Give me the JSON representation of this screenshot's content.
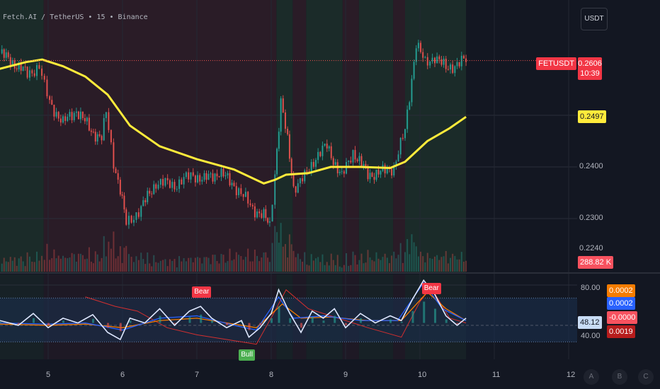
{
  "header": {
    "title": "Fetch.AI / TetherUS • 15 • Binance",
    "currency_button": "USDT"
  },
  "price_axis": {
    "ticks": [
      "0.2400",
      "0.2300",
      "0.2240"
    ],
    "symbol_tag": "FETUSDT",
    "last_price": "0.2606",
    "countdown": "10:39",
    "ma_value": "0.2497",
    "volume_value": "288.82 K"
  },
  "oscillator_axis": {
    "ticks": [
      "80.00",
      "40.00"
    ],
    "current": "48.12",
    "values": [
      "0.0002",
      "0.0002",
      "-0.0000",
      "0.0019"
    ]
  },
  "signals": [
    {
      "label": "Bear",
      "day": 7.05,
      "value": 69
    },
    {
      "label": "Bull",
      "day": 7.68,
      "value": 28
    },
    {
      "label": "Bear",
      "day": 10.14,
      "value": 72
    }
  ],
  "time_axis": {
    "labels": [
      "5",
      "6",
      "7",
      "8",
      "9",
      "10",
      "11",
      "12"
    ]
  },
  "scale_buttons": [
    "A",
    "B",
    "C"
  ],
  "colors": {
    "background": "#131722",
    "up": "#26a69a",
    "down": "#ef5350",
    "ma": "#ffeb3b",
    "bull_band": "#1b2b29",
    "bear_band": "#2a1c27",
    "osc_main": "#dfe8ff",
    "osc_blue": "#2962ff",
    "osc_orange": "#f57c00",
    "osc_red": "#d32f2f"
  },
  "chart_data": {
    "type": "candlestick",
    "symbol": "FETUSDT",
    "interval": "15",
    "x_unit": "day",
    "xlim": [
      4.35,
      12.3
    ],
    "ylim": [
      0.221,
      0.268
    ],
    "regime_bands": [
      {
        "from": 4.35,
        "to": 4.94,
        "state": "bull"
      },
      {
        "from": 4.94,
        "to": 8.07,
        "state": "bear"
      },
      {
        "from": 8.07,
        "to": 8.29,
        "state": "bull"
      },
      {
        "from": 8.29,
        "to": 8.47,
        "state": "bear"
      },
      {
        "from": 8.47,
        "to": 8.96,
        "state": "bull"
      },
      {
        "from": 8.96,
        "to": 9.18,
        "state": "bear"
      },
      {
        "from": 9.18,
        "to": 9.64,
        "state": "bull"
      },
      {
        "from": 9.64,
        "to": 9.8,
        "state": "bear"
      },
      {
        "from": 9.8,
        "to": 10.62,
        "state": "bull"
      }
    ],
    "close": [
      [
        4.35,
        0.262
      ],
      [
        4.55,
        0.26
      ],
      [
        4.72,
        0.258
      ],
      [
        4.88,
        0.2595
      ],
      [
        4.95,
        0.2555
      ],
      [
        5.02,
        0.2525
      ],
      [
        5.2,
        0.2485
      ],
      [
        5.38,
        0.251
      ],
      [
        5.58,
        0.247
      ],
      [
        5.72,
        0.2455
      ],
      [
        5.78,
        0.2505
      ],
      [
        5.88,
        0.241
      ],
      [
        5.97,
        0.2355
      ],
      [
        6.05,
        0.229
      ],
      [
        6.12,
        0.23
      ],
      [
        6.25,
        0.232
      ],
      [
        6.45,
        0.237
      ],
      [
        6.7,
        0.2365
      ],
      [
        6.95,
        0.2385
      ],
      [
        7.1,
        0.2375
      ],
      [
        7.3,
        0.239
      ],
      [
        7.5,
        0.2365
      ],
      [
        7.75,
        0.232
      ],
      [
        7.9,
        0.2305
      ],
      [
        7.98,
        0.2285
      ],
      [
        8.05,
        0.239
      ],
      [
        8.13,
        0.2525
      ],
      [
        8.22,
        0.245
      ],
      [
        8.3,
        0.236
      ],
      [
        8.45,
        0.238
      ],
      [
        8.6,
        0.242
      ],
      [
        8.75,
        0.244
      ],
      [
        8.95,
        0.238
      ],
      [
        9.1,
        0.243
      ],
      [
        9.3,
        0.2385
      ],
      [
        9.5,
        0.239
      ],
      [
        9.65,
        0.24
      ],
      [
        9.8,
        0.247
      ],
      [
        9.95,
        0.264
      ],
      [
        10.07,
        0.26
      ],
      [
        10.2,
        0.2615
      ],
      [
        10.35,
        0.259
      ],
      [
        10.5,
        0.26
      ],
      [
        10.62,
        0.2606
      ]
    ],
    "moving_average": [
      [
        4.35,
        0.259
      ],
      [
        4.7,
        0.2603
      ],
      [
        4.92,
        0.2608
      ],
      [
        5.2,
        0.2595
      ],
      [
        5.5,
        0.2575
      ],
      [
        5.8,
        0.254
      ],
      [
        6.1,
        0.248
      ],
      [
        6.5,
        0.244
      ],
      [
        7.0,
        0.2415
      ],
      [
        7.5,
        0.2395
      ],
      [
        7.9,
        0.2368
      ],
      [
        8.05,
        0.2375
      ],
      [
        8.2,
        0.2385
      ],
      [
        8.5,
        0.2388
      ],
      [
        8.8,
        0.24
      ],
      [
        9.2,
        0.24
      ],
      [
        9.6,
        0.2398
      ],
      [
        9.8,
        0.241
      ],
      [
        10.1,
        0.245
      ],
      [
        10.4,
        0.2475
      ],
      [
        10.62,
        0.2497
      ]
    ],
    "oscillator": {
      "ylim": [
        20,
        88
      ],
      "upper_band": 69,
      "lower_band": 32,
      "mid_line": 46,
      "main": [
        [
          4.35,
          50
        ],
        [
          4.6,
          46
        ],
        [
          4.8,
          56
        ],
        [
          5.0,
          44
        ],
        [
          5.2,
          52
        ],
        [
          5.4,
          48
        ],
        [
          5.6,
          55
        ],
        [
          5.8,
          40
        ],
        [
          5.97,
          34
        ],
        [
          6.1,
          52
        ],
        [
          6.3,
          48
        ],
        [
          6.5,
          60
        ],
        [
          6.7,
          46
        ],
        [
          6.9,
          58
        ],
        [
          7.05,
          62
        ],
        [
          7.2,
          52
        ],
        [
          7.4,
          44
        ],
        [
          7.6,
          50
        ],
        [
          7.7,
          36
        ],
        [
          7.85,
          44
        ],
        [
          8.0,
          56
        ],
        [
          8.1,
          76
        ],
        [
          8.25,
          56
        ],
        [
          8.4,
          40
        ],
        [
          8.55,
          58
        ],
        [
          8.7,
          52
        ],
        [
          8.85,
          60
        ],
        [
          9.0,
          44
        ],
        [
          9.2,
          56
        ],
        [
          9.4,
          48
        ],
        [
          9.6,
          54
        ],
        [
          9.75,
          50
        ],
        [
          9.9,
          68
        ],
        [
          10.05,
          84
        ],
        [
          10.2,
          72
        ],
        [
          10.35,
          54
        ],
        [
          10.5,
          46
        ],
        [
          10.62,
          52
        ]
      ],
      "blue": [
        [
          4.35,
          48
        ],
        [
          5.0,
          47
        ],
        [
          5.5,
          48
        ],
        [
          6.0,
          42
        ],
        [
          6.5,
          52
        ],
        [
          7.0,
          54
        ],
        [
          7.5,
          46
        ],
        [
          7.8,
          42
        ],
        [
          8.1,
          70
        ],
        [
          8.3,
          52
        ],
        [
          8.7,
          54
        ],
        [
          9.2,
          50
        ],
        [
          9.7,
          50
        ],
        [
          10.05,
          82
        ],
        [
          10.3,
          60
        ],
        [
          10.62,
          50
        ]
      ],
      "orange": [
        [
          4.35,
          47
        ],
        [
          5.0,
          46
        ],
        [
          5.5,
          47
        ],
        [
          6.0,
          44
        ],
        [
          6.5,
          50
        ],
        [
          7.0,
          52
        ],
        [
          7.5,
          47
        ],
        [
          7.8,
          44
        ],
        [
          8.15,
          64
        ],
        [
          8.4,
          52
        ],
        [
          8.8,
          53
        ],
        [
          9.3,
          50
        ],
        [
          9.75,
          50
        ],
        [
          10.1,
          74
        ],
        [
          10.35,
          60
        ],
        [
          10.62,
          50
        ]
      ],
      "red": [
        [
          5.5,
          70
        ],
        [
          5.9,
          62
        ],
        [
          6.2,
          58
        ],
        [
          6.6,
          44
        ],
        [
          7.0,
          38
        ],
        [
          7.4,
          34
        ],
        [
          7.8,
          30
        ],
        [
          8.05,
          58
        ],
        [
          8.2,
          76
        ],
        [
          8.5,
          60
        ],
        [
          8.9,
          52
        ],
        [
          9.3,
          44
        ],
        [
          9.75,
          36
        ],
        [
          10.0,
          66
        ],
        [
          10.15,
          78
        ],
        [
          10.4,
          52
        ],
        [
          10.62,
          48
        ]
      ]
    }
  }
}
